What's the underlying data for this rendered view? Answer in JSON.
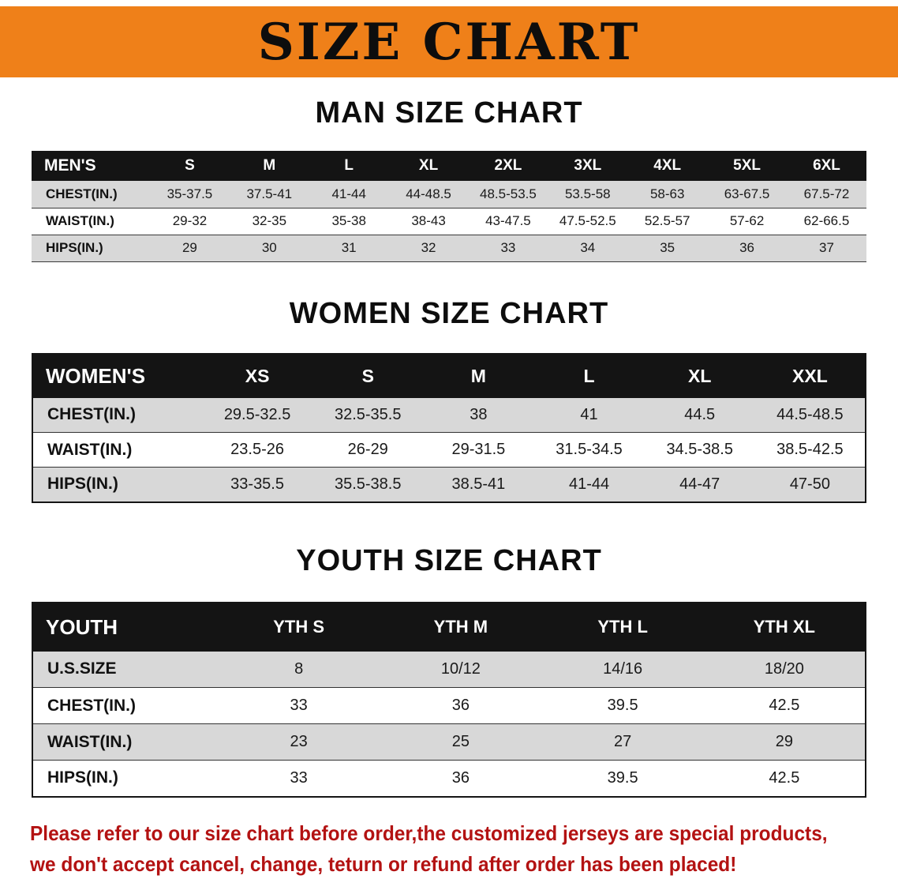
{
  "banner": {
    "title": "SIZE CHART"
  },
  "colors": {
    "banner_bg": "#ef8019",
    "table_header_bg": "#141414",
    "row_alt_gray": "#d8d8d8",
    "notice_red": "#b31212"
  },
  "sections": [
    {
      "id": "men",
      "heading": "MAN SIZE CHART",
      "table": {
        "header": [
          "MEN'S",
          "S",
          "M",
          "L",
          "XL",
          "2XL",
          "3XL",
          "4XL",
          "5XL",
          "6XL"
        ],
        "rows": [
          [
            "CHEST(IN.)",
            "35-37.5",
            "37.5-41",
            "41-44",
            "44-48.5",
            "48.5-53.5",
            "53.5-58",
            "58-63",
            "63-67.5",
            "67.5-72"
          ],
          [
            "WAIST(IN.)",
            "29-32",
            "32-35",
            "35-38",
            "38-43",
            "43-47.5",
            "47.5-52.5",
            "52.5-57",
            "57-62",
            "62-66.5"
          ],
          [
            "HIPS(IN.)",
            "29",
            "30",
            "31",
            "32",
            "33",
            "34",
            "35",
            "36",
            "37"
          ]
        ]
      }
    },
    {
      "id": "women",
      "heading": "WOMEN SIZE CHART",
      "table": {
        "header": [
          "WOMEN'S",
          "XS",
          "S",
          "M",
          "L",
          "XL",
          "XXL"
        ],
        "rows": [
          [
            "CHEST(IN.)",
            "29.5-32.5",
            "32.5-35.5",
            "38",
            "41",
            "44.5",
            "44.5-48.5"
          ],
          [
            "WAIST(IN.)",
            "23.5-26",
            "26-29",
            "29-31.5",
            "31.5-34.5",
            "34.5-38.5",
            "38.5-42.5"
          ],
          [
            "HIPS(IN.)",
            "33-35.5",
            "35.5-38.5",
            "38.5-41",
            "41-44",
            "44-47",
            "47-50"
          ]
        ]
      }
    },
    {
      "id": "youth",
      "heading": "YOUTH SIZE CHART",
      "table": {
        "header": [
          "YOUTH",
          "YTH S",
          "YTH M",
          "YTH L",
          "YTH XL"
        ],
        "rows": [
          [
            "U.S.SIZE",
            "8",
            "10/12",
            "14/16",
            "18/20"
          ],
          [
            "CHEST(IN.)",
            "33",
            "36",
            "39.5",
            "42.5"
          ],
          [
            "WAIST(IN.)",
            "23",
            "25",
            "27",
            "29"
          ],
          [
            "HIPS(IN.)",
            "33",
            "36",
            "39.5",
            "42.5"
          ]
        ]
      }
    }
  ],
  "notice": {
    "lines": [
      "Please refer to our size chart before order,the customized jerseys are special products,",
      "we don't accept cancel, change, teturn or refund after order has been placed!"
    ]
  }
}
